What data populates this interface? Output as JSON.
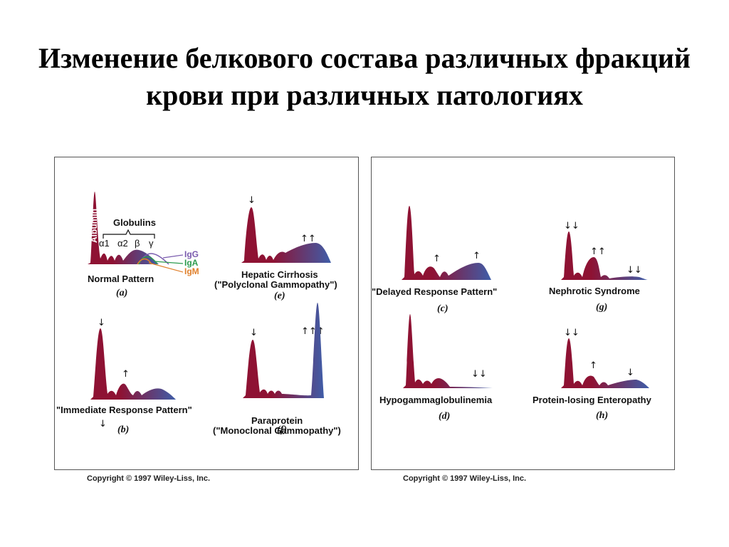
{
  "title": "Изменение белкового состава различных фракций крови при различных патологиях",
  "colors": {
    "red": "#8e1233",
    "blue": "#3f5da8",
    "igg": "#7a5cae",
    "iga": "#2d9b4e",
    "igm": "#e0802c"
  },
  "legend": {
    "globulins": "Globulins",
    "albumin": "Albumin",
    "a1": "α1",
    "a2": "α2",
    "beta": "β",
    "gamma": "γ",
    "igg": "IgG",
    "iga": "IgA",
    "igm": "IgM"
  },
  "panels": {
    "a": {
      "label": "Normal Pattern",
      "sub": "(a)"
    },
    "e": {
      "label1": "Hepatic Cirrhosis",
      "label2": "(\"Polyclonal Gammopathy\")",
      "sub": "(e)"
    },
    "b": {
      "label": "\"Immediate Response Pattern\"",
      "sub": "(b)"
    },
    "f": {
      "label1": "Paraprotein",
      "label2": "(\"Monoclonal Gammopathy\")",
      "sub": "(f)"
    },
    "c": {
      "label": "\"Delayed Response Pattern\"",
      "sub": "(c)"
    },
    "g": {
      "label": "Nephrotic Syndrome",
      "sub": "(g)"
    },
    "d": {
      "label": "Hypogammaglobulinemia",
      "sub": "(d)"
    },
    "h": {
      "label": "Protein-losing Enteropathy",
      "sub": "(h)"
    }
  },
  "arrows": {
    "down": "↓",
    "down2": "↓↓",
    "up": "↑",
    "up2": "↑↑",
    "up3": "↑↑↑"
  },
  "copyright": {
    "left": "Copyright © 1997 Wiley-Liss, Inc.",
    "right": "Copyright © 1997 Wiley-Liss, Inc."
  }
}
